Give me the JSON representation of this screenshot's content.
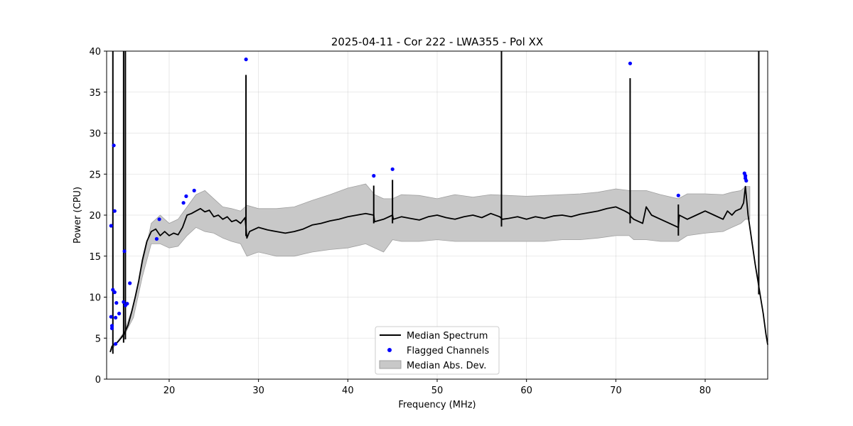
{
  "chart_data": {
    "type": "line",
    "title": "2025-04-11 - Cor 222 - LWA355 - Pol XX",
    "xlabel": "Frequency (MHz)",
    "ylabel": "Power (CPU)",
    "xlim": [
      13,
      87
    ],
    "ylim": [
      0,
      40
    ],
    "xticks": [
      20,
      30,
      40,
      50,
      60,
      70,
      80
    ],
    "yticks": [
      0,
      5,
      10,
      15,
      20,
      25,
      30,
      35,
      40
    ],
    "grid": true,
    "legend_position": "lower-center",
    "legend": [
      "Median Spectrum",
      "Flagged Channels",
      "Median Abs. Dev."
    ],
    "colors": {
      "median": "#000000",
      "flagged": "#0000ff",
      "mad_fill": "#c8c8c8",
      "mad_edge": "#a0a0a0"
    },
    "series": [
      {
        "name": "Median Spectrum",
        "x": [
          13.4,
          13.6,
          13.8,
          14.0,
          14.3,
          14.6,
          15.0,
          15.4,
          15.8,
          16.2,
          16.6,
          17.0,
          17.5,
          18.0,
          18.5,
          19.0,
          19.5,
          20.0,
          20.5,
          21.0,
          21.5,
          22.0,
          22.5,
          23.0,
          23.5,
          24.0,
          24.5,
          25.0,
          25.5,
          26.0,
          26.5,
          27.0,
          27.5,
          28.0,
          28.5,
          28.7,
          29.0,
          30.0,
          31.0,
          32.0,
          33.0,
          34.0,
          35.0,
          36.0,
          37.0,
          38.0,
          39.0,
          40.0,
          41.0,
          42.0,
          42.9,
          43.0,
          44.0,
          45.0,
          45.1,
          46.0,
          47.0,
          48.0,
          49.0,
          50.0,
          51.0,
          52.0,
          53.0,
          54.0,
          55.0,
          56.0,
          57.0,
          57.3,
          58.0,
          59.0,
          60.0,
          61.0,
          62.0,
          63.0,
          64.0,
          65.0,
          66.0,
          67.0,
          68.0,
          69.0,
          70.0,
          71.0,
          71.5,
          71.7,
          72.0,
          73.0,
          73.4,
          74.0,
          75.0,
          76.0,
          77.0,
          77.1,
          78.0,
          79.0,
          80.0,
          81.0,
          82.0,
          82.5,
          83.0,
          83.4,
          84.0,
          84.3,
          84.5,
          84.8,
          85.2,
          85.6,
          85.9,
          86.2,
          86.5,
          86.8,
          87.0
        ],
        "y": [
          3.3,
          4.0,
          4.2,
          4.3,
          4.6,
          5.0,
          5.6,
          6.6,
          8.2,
          10.0,
          12.0,
          14.5,
          16.8,
          18.0,
          18.3,
          17.5,
          18.0,
          17.5,
          17.8,
          17.6,
          18.5,
          20.0,
          20.2,
          20.5,
          20.8,
          20.4,
          20.6,
          19.8,
          20.0,
          19.5,
          19.8,
          19.2,
          19.4,
          19.0,
          19.7,
          17.2,
          18.0,
          18.5,
          18.2,
          18.0,
          17.8,
          18.0,
          18.3,
          18.8,
          19.0,
          19.3,
          19.5,
          19.8,
          20.0,
          20.2,
          20.0,
          19.2,
          19.5,
          20.0,
          19.5,
          19.8,
          19.6,
          19.4,
          19.8,
          20.0,
          19.7,
          19.5,
          19.8,
          20.0,
          19.7,
          20.2,
          19.8,
          19.5,
          19.6,
          19.8,
          19.5,
          19.8,
          19.6,
          19.9,
          20.0,
          19.8,
          20.1,
          20.3,
          20.5,
          20.8,
          21.0,
          20.5,
          20.2,
          19.8,
          19.5,
          19.0,
          21.0,
          20.0,
          19.5,
          19.0,
          18.5,
          20.0,
          19.5,
          20.0,
          20.5,
          20.0,
          19.5,
          20.5,
          20.0,
          20.5,
          20.8,
          21.5,
          23.5,
          20.0,
          17.0,
          14.0,
          12.0,
          10.0,
          8.0,
          5.5,
          4.2
        ],
        "spikes": [
          {
            "x": 13.7,
            "y": 40
          },
          {
            "x": 14.9,
            "y": 40
          },
          {
            "x": 15.1,
            "y": 40
          },
          {
            "x": 28.6,
            "y": 37.1
          },
          {
            "x": 42.9,
            "y": 23.6
          },
          {
            "x": 45.0,
            "y": 24.3
          },
          {
            "x": 57.2,
            "y": 40
          },
          {
            "x": 71.6,
            "y": 36.7
          },
          {
            "x": 77.0,
            "y": 21.3
          },
          {
            "x": 86.0,
            "y": 40
          }
        ]
      },
      {
        "name": "Median Abs. Dev.",
        "x": [
          13.4,
          14.0,
          15.0,
          16.0,
          17.0,
          18.0,
          19.0,
          20.0,
          21.0,
          22.0,
          23.0,
          24.0,
          25.0,
          26.0,
          27.0,
          28.0,
          28.7,
          30.0,
          32.0,
          34.0,
          36.0,
          38.0,
          40.0,
          42.0,
          43.0,
          44.0,
          45.0,
          46.0,
          48.0,
          50.0,
          52.0,
          54.0,
          56.0,
          58.0,
          60.0,
          62.0,
          64.0,
          66.0,
          68.0,
          70.0,
          71.5,
          72.0,
          73.4,
          75.0,
          77.0,
          78.0,
          80.0,
          82.0,
          83.0,
          84.0,
          84.5,
          85.0
        ],
        "upper": [
          3.3,
          4.3,
          5.8,
          9.0,
          14.0,
          19.0,
          20.0,
          19.0,
          19.5,
          21.0,
          22.5,
          23.0,
          22.0,
          21.0,
          20.8,
          20.5,
          21.2,
          20.8,
          20.8,
          21.0,
          21.8,
          22.5,
          23.3,
          23.8,
          22.5,
          22.0,
          22.0,
          22.5,
          22.4,
          22.0,
          22.5,
          22.2,
          22.5,
          22.4,
          22.3,
          22.4,
          22.5,
          22.6,
          22.8,
          23.2,
          23.0,
          23.0,
          23.0,
          22.5,
          22.0,
          22.6,
          22.6,
          22.5,
          22.8,
          23.0,
          23.5,
          23.5
        ],
        "lower": [
          3.3,
          4.2,
          5.4,
          7.5,
          12.5,
          16.5,
          16.5,
          16.0,
          16.2,
          17.5,
          18.5,
          18.0,
          17.8,
          17.2,
          16.8,
          16.5,
          15.0,
          15.5,
          15.0,
          15.0,
          15.5,
          15.8,
          16.0,
          16.5,
          16.0,
          15.5,
          17.0,
          16.8,
          16.8,
          17.0,
          16.8,
          16.8,
          16.8,
          16.8,
          16.8,
          16.8,
          17.0,
          17.0,
          17.2,
          17.5,
          17.5,
          17.0,
          17.0,
          16.8,
          16.8,
          17.5,
          17.8,
          18.0,
          18.5,
          19.0,
          19.5,
          19.5
        ]
      },
      {
        "name": "Flagged Channels",
        "points": [
          {
            "x": 13.5,
            "y": 18.7
          },
          {
            "x": 13.5,
            "y": 7.6
          },
          {
            "x": 13.6,
            "y": 6.5
          },
          {
            "x": 13.6,
            "y": 6.2
          },
          {
            "x": 13.7,
            "y": 10.9
          },
          {
            "x": 13.8,
            "y": 28.5
          },
          {
            "x": 13.9,
            "y": 10.6
          },
          {
            "x": 13.9,
            "y": 20.5
          },
          {
            "x": 14.0,
            "y": 4.3
          },
          {
            "x": 14.0,
            "y": 7.5
          },
          {
            "x": 14.1,
            "y": 9.3
          },
          {
            "x": 14.4,
            "y": 8.0
          },
          {
            "x": 14.9,
            "y": 9.4
          },
          {
            "x": 15.0,
            "y": 15.6
          },
          {
            "x": 15.1,
            "y": 9.0
          },
          {
            "x": 15.3,
            "y": 9.2
          },
          {
            "x": 15.6,
            "y": 11.7
          },
          {
            "x": 18.6,
            "y": 17.1
          },
          {
            "x": 18.9,
            "y": 19.5
          },
          {
            "x": 21.6,
            "y": 21.5
          },
          {
            "x": 21.9,
            "y": 22.3
          },
          {
            "x": 22.8,
            "y": 23.0
          },
          {
            "x": 28.6,
            "y": 39.0
          },
          {
            "x": 42.9,
            "y": 24.8
          },
          {
            "x": 45.0,
            "y": 25.6
          },
          {
            "x": 71.6,
            "y": 38.5
          },
          {
            "x": 77.0,
            "y": 22.4
          },
          {
            "x": 84.4,
            "y": 25.1
          },
          {
            "x": 84.5,
            "y": 24.8
          },
          {
            "x": 84.5,
            "y": 24.5
          },
          {
            "x": 84.6,
            "y": 24.2
          }
        ]
      }
    ]
  }
}
